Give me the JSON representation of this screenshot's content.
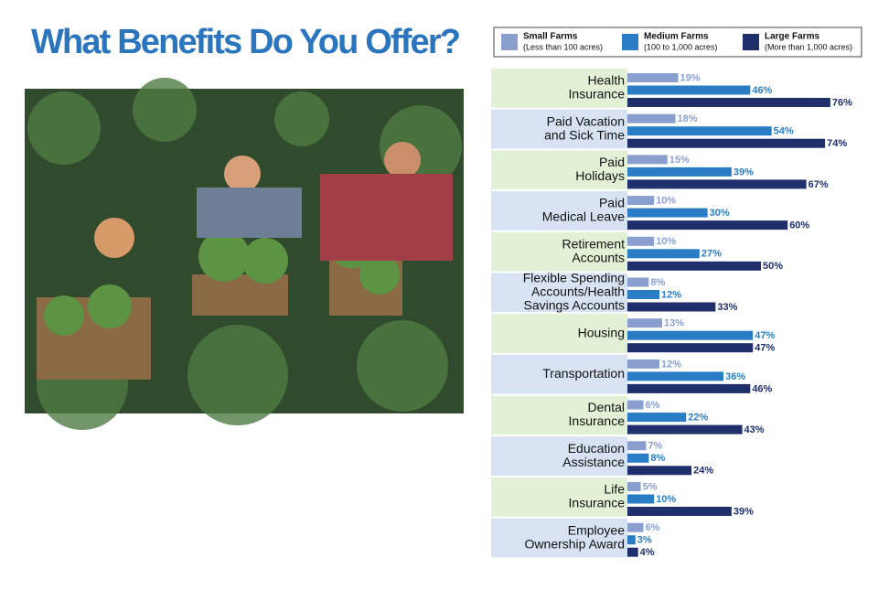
{
  "chart_data": {
    "type": "grouped-barh",
    "title": "What Benefits Do You Offer?",
    "categories": [
      [
        "Health",
        "Insurance"
      ],
      [
        "Paid Vacation",
        "and Sick Time"
      ],
      [
        "Paid",
        "Holidays"
      ],
      [
        "Paid",
        "Medical Leave"
      ],
      [
        "Retirement",
        "Accounts"
      ],
      [
        "Flexible Spending",
        "Accounts/Health",
        "Savings Accounts"
      ],
      [
        "Housing"
      ],
      [
        "Transportation"
      ],
      [
        "Dental",
        "Insurance"
      ],
      [
        "Education",
        "Assistance"
      ],
      [
        "Life",
        "Insurance"
      ],
      [
        "Employee",
        "Ownership Award"
      ]
    ],
    "series": [
      {
        "name": "Small Farms",
        "description": "(Less than 100 acres)",
        "color": "#8a9fce",
        "values": [
          19,
          18,
          15,
          10,
          10,
          8,
          13,
          12,
          6,
          7,
          5,
          6
        ],
        "value_labels": [
          "19%",
          "18%",
          "15%",
          "10%",
          "10%",
          "8%",
          "13%",
          "12%",
          "6%",
          "7%",
          "5%",
          "6%"
        ]
      },
      {
        "name": "Medium Farms",
        "description": "(100 to 1,000 acres)",
        "color": "#2a7dc4",
        "values": [
          46,
          54,
          39,
          30,
          27,
          12,
          47,
          36,
          22,
          8,
          10,
          3
        ],
        "value_labels": [
          "46%",
          "54%",
          "39%",
          "30%",
          "27%",
          "12%",
          "47%",
          "36%",
          "22%",
          "8%",
          "10%",
          "3%"
        ]
      },
      {
        "name": "Large Farms",
        "description": "(More than 1,000 acres)",
        "color": "#1e2f6c",
        "values": [
          76,
          74,
          67,
          60,
          50,
          33,
          47,
          46,
          43,
          24,
          39,
          4
        ],
        "value_labels": [
          "76%",
          "74%",
          "67%",
          "60%",
          "50%",
          "33%",
          "47%",
          "46%",
          "43%",
          "24%",
          "39%",
          "4%"
        ]
      }
    ],
    "row_colors": [
      "#e2f0d6",
      "#d7e3f3"
    ]
  }
}
